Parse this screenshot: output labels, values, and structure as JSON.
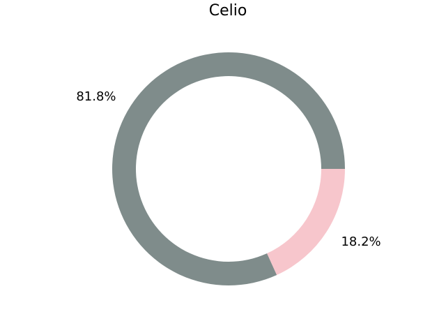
{
  "chart_data": {
    "type": "pie",
    "style": "donut",
    "title": "Celio",
    "start_angle_deg": 0,
    "direction": "counterclockwise",
    "slices": [
      {
        "value": 81.8,
        "label": "81.8%",
        "color": "#7f8c8b"
      },
      {
        "value": 18.2,
        "label": "18.2%",
        "color": "#f7c6cc"
      }
    ],
    "legend": "none"
  }
}
